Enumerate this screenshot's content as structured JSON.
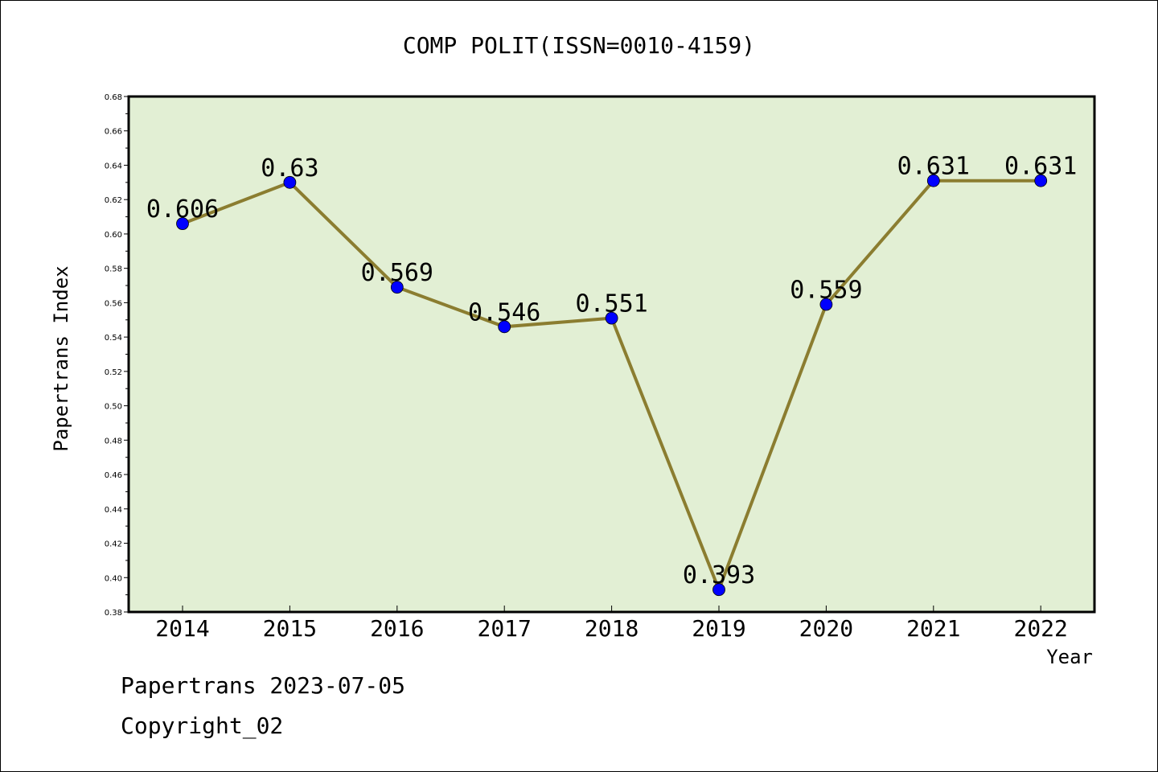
{
  "chart_data": {
    "type": "line",
    "title": "COMP POLIT(ISSN=0010-4159)",
    "xlabel": "Year",
    "ylabel": "Papertrans Index",
    "categories": [
      "2014",
      "2015",
      "2016",
      "2017",
      "2018",
      "2019",
      "2020",
      "2021",
      "2022"
    ],
    "series": [
      {
        "values": [
          0.606,
          0.63,
          0.569,
          0.546,
          0.551,
          0.393,
          0.559,
          0.631,
          0.631
        ],
        "labels": [
          "0.606",
          "0.63",
          "0.569",
          "0.546",
          "0.551",
          "0.393",
          "0.559",
          "0.631",
          "0.631"
        ]
      }
    ],
    "ylim": [
      0.38,
      0.68
    ],
    "yticks": [
      "0.38",
      "0.40",
      "0.42",
      "0.44",
      "0.46",
      "0.48",
      "0.50",
      "0.52",
      "0.54",
      "0.56",
      "0.58",
      "0.60",
      "0.62",
      "0.64",
      "0.66",
      "0.68"
    ],
    "grid": false,
    "legend": "none"
  },
  "footer": {
    "line1": "Papertrans 2023-07-05",
    "line2": "Copyright_02"
  },
  "colors": {
    "plot_background": "#e2efd4",
    "line": "#8b7d30",
    "marker": "#0000ff"
  }
}
